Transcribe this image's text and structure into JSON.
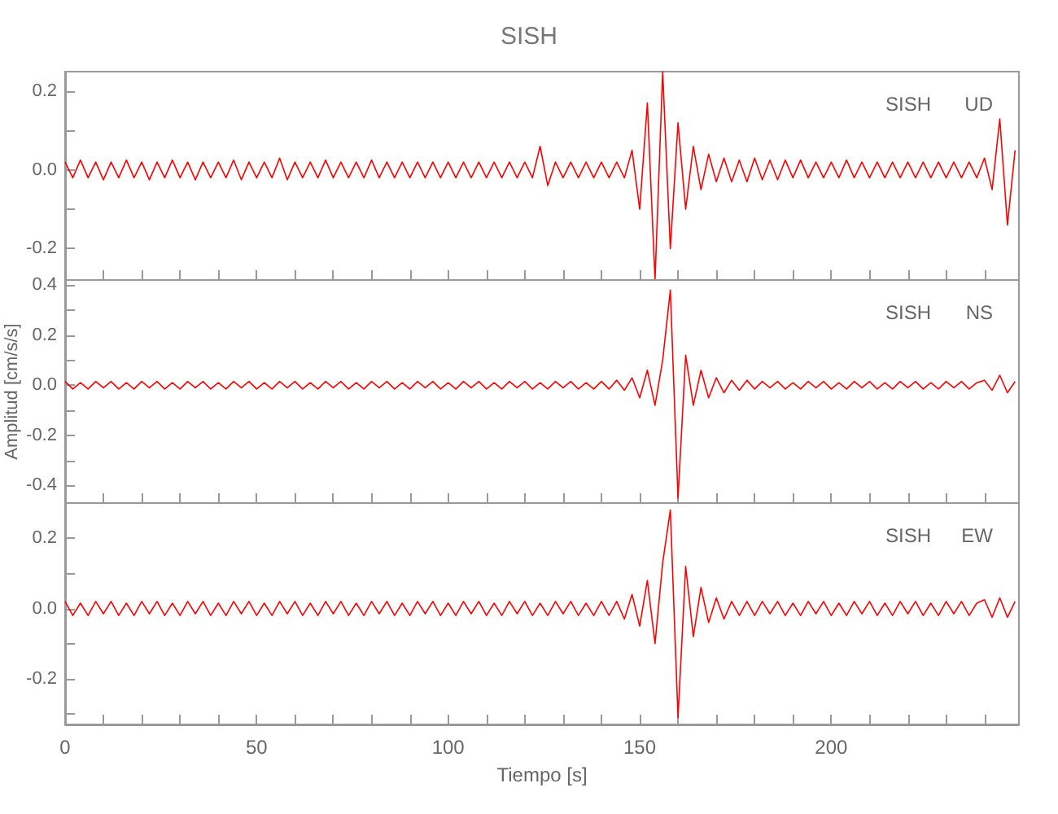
{
  "chart_data": [
    {
      "type": "line",
      "title": "SISH",
      "annotations": [
        "SISH",
        "UD"
      ],
      "tick_labels": "y",
      "line_style": "solid",
      "x": [
        0,
        2,
        4,
        6,
        8,
        10,
        12,
        14,
        16,
        18,
        20,
        22,
        24,
        26,
        28,
        30,
        32,
        34,
        36,
        38,
        40,
        42,
        44,
        46,
        48,
        50,
        52,
        54,
        56,
        58,
        60,
        62,
        64,
        66,
        68,
        70,
        72,
        74,
        76,
        78,
        80,
        82,
        84,
        86,
        88,
        90,
        92,
        94,
        96,
        98,
        100,
        102,
        104,
        106,
        108,
        110,
        112,
        114,
        116,
        118,
        120,
        122,
        124,
        126,
        128,
        130,
        132,
        134,
        136,
        138,
        140,
        142,
        144,
        146,
        148,
        150,
        152,
        154,
        156,
        158,
        160,
        162,
        164,
        166,
        168,
        170,
        172,
        174,
        176,
        178,
        180,
        182,
        184,
        186,
        188,
        190,
        192,
        194,
        196,
        198,
        200,
        202,
        204,
        206,
        208,
        210,
        212,
        214,
        216,
        218,
        220,
        222,
        224,
        226,
        228,
        230,
        232,
        234,
        236,
        238,
        240,
        242,
        244,
        246,
        248
      ],
      "series": [
        {
          "color": "#ff0000",
          "values": [
            0.02,
            -0.02,
            0.025,
            -0.02,
            0.02,
            -0.025,
            0.02,
            -0.02,
            0.025,
            -0.02,
            0.02,
            -0.025,
            0.02,
            -0.02,
            0.025,
            -0.02,
            0.02,
            -0.025,
            0.02,
            -0.02,
            0.02,
            -0.02,
            0.025,
            -0.025,
            0.02,
            -0.02,
            0.02,
            -0.02,
            0.03,
            -0.025,
            0.02,
            -0.02,
            0.02,
            -0.02,
            0.025,
            -0.02,
            0.02,
            -0.02,
            0.02,
            -0.02,
            0.025,
            -0.02,
            0.02,
            -0.02,
            0.02,
            -0.02,
            0.02,
            -0.02,
            0.02,
            -0.02,
            0.02,
            -0.02,
            0.02,
            -0.02,
            0.02,
            -0.02,
            0.02,
            -0.02,
            0.02,
            -0.02,
            0.02,
            -0.02,
            0.06,
            -0.04,
            0.02,
            -0.02,
            0.02,
            -0.02,
            0.02,
            -0.02,
            0.02,
            -0.02,
            0.02,
            -0.02,
            0.05,
            -0.1,
            0.17,
            -0.28,
            0.25,
            -0.2,
            0.12,
            -0.1,
            0.06,
            -0.05,
            0.04,
            -0.03,
            0.03,
            -0.03,
            0.025,
            -0.03,
            0.03,
            -0.025,
            0.025,
            -0.025,
            0.025,
            -0.02,
            0.025,
            -0.02,
            0.02,
            -0.02,
            0.02,
            -0.02,
            0.025,
            -0.02,
            0.02,
            -0.02,
            0.02,
            -0.02,
            0.02,
            -0.02,
            0.02,
            -0.02,
            0.02,
            -0.02,
            0.02,
            -0.02,
            0.02,
            -0.02,
            0.02,
            -0.02,
            0.03,
            -0.05,
            0.13,
            -0.14,
            0.05
          ]
        }
      ],
      "xlim": [
        0,
        249
      ],
      "ylim": [
        -0.28,
        0.25
      ],
      "xticks": [
        0,
        {
          "value": 10,
          "label": null
        },
        {
          "value": 20,
          "label": null
        },
        {
          "value": 30,
          "label": null
        },
        {
          "value": 40,
          "label": null
        },
        50,
        {
          "value": 60,
          "label": null
        },
        {
          "value": 70,
          "label": null
        },
        {
          "value": 80,
          "label": null
        },
        {
          "value": 90,
          "label": null
        },
        100,
        {
          "value": 110,
          "label": null
        },
        {
          "value": 120,
          "label": null
        },
        {
          "value": 130,
          "label": null
        },
        {
          "value": 140,
          "label": null
        },
        150,
        {
          "value": 160,
          "label": null
        },
        {
          "value": 170,
          "label": null
        },
        {
          "value": 180,
          "label": null
        },
        {
          "value": 190,
          "label": null
        },
        200,
        {
          "value": 210,
          "label": null
        },
        {
          "value": 220,
          "label": null
        },
        {
          "value": 230,
          "label": null
        },
        {
          "value": 240,
          "label": null
        }
      ],
      "yticks": [
        {
          "value": -0.2,
          "label": "-0.2"
        },
        {
          "value": -0.1,
          "label": null
        },
        {
          "value": 0,
          "label": "0.0"
        },
        {
          "value": 0.1,
          "label": null
        },
        {
          "value": 0.2,
          "label": "0.2"
        }
      ]
    },
    {
      "type": "line",
      "ylabel": "Amplitud [cm/s/s]",
      "annotations": [
        "SISH",
        "NS"
      ],
      "tick_labels": "y",
      "line_style": "solid",
      "x": [
        0,
        2,
        4,
        6,
        8,
        10,
        12,
        14,
        16,
        18,
        20,
        22,
        24,
        26,
        28,
        30,
        32,
        34,
        36,
        38,
        40,
        42,
        44,
        46,
        48,
        50,
        52,
        54,
        56,
        58,
        60,
        62,
        64,
        66,
        68,
        70,
        72,
        74,
        76,
        78,
        80,
        82,
        84,
        86,
        88,
        90,
        92,
        94,
        96,
        98,
        100,
        102,
        104,
        106,
        108,
        110,
        112,
        114,
        116,
        118,
        120,
        122,
        124,
        126,
        128,
        130,
        132,
        134,
        136,
        138,
        140,
        142,
        144,
        146,
        148,
        150,
        152,
        154,
        156,
        158,
        160,
        162,
        164,
        166,
        168,
        170,
        172,
        174,
        176,
        178,
        180,
        182,
        184,
        186,
        188,
        190,
        192,
        194,
        196,
        198,
        200,
        202,
        204,
        206,
        208,
        210,
        212,
        214,
        216,
        218,
        220,
        222,
        224,
        226,
        228,
        230,
        232,
        234,
        236,
        238,
        240,
        242,
        244,
        246,
        248
      ],
      "series": [
        {
          "color": "#ff0000",
          "values": [
            0.015,
            -0.015,
            0.01,
            -0.015,
            0.015,
            -0.01,
            0.015,
            -0.015,
            0.01,
            -0.015,
            0.015,
            -0.01,
            0.015,
            -0.015,
            0.01,
            -0.015,
            0.015,
            -0.01,
            0.015,
            -0.015,
            0.01,
            -0.015,
            0.015,
            -0.01,
            0.015,
            -0.015,
            0.01,
            -0.015,
            0.015,
            -0.01,
            0.015,
            -0.015,
            0.01,
            -0.015,
            0.015,
            -0.01,
            0.015,
            -0.015,
            0.01,
            -0.015,
            0.015,
            -0.01,
            0.015,
            -0.015,
            0.01,
            -0.015,
            0.015,
            -0.01,
            0.015,
            -0.015,
            0.01,
            -0.015,
            0.015,
            -0.01,
            0.015,
            -0.015,
            0.01,
            -0.015,
            0.015,
            -0.01,
            0.015,
            -0.015,
            0.01,
            -0.015,
            0.015,
            -0.01,
            0.015,
            -0.015,
            0.01,
            -0.015,
            0.015,
            -0.015,
            0.02,
            -0.02,
            0.03,
            -0.05,
            0.06,
            -0.08,
            0.1,
            0.38,
            -0.45,
            0.12,
            -0.08,
            0.06,
            -0.05,
            0.03,
            -0.03,
            0.02,
            -0.02,
            0.02,
            -0.015,
            0.015,
            -0.01,
            0.015,
            -0.015,
            0.01,
            -0.015,
            0.015,
            -0.01,
            0.015,
            -0.015,
            0.01,
            -0.015,
            0.015,
            -0.01,
            0.015,
            -0.015,
            0.01,
            -0.015,
            0.015,
            -0.01,
            0.015,
            -0.015,
            0.01,
            -0.015,
            0.015,
            -0.01,
            0.015,
            -0.015,
            0.01,
            0.02,
            -0.02,
            0.04,
            -0.03,
            0.015
          ]
        }
      ],
      "xlim": [
        0,
        249
      ],
      "ylim": [
        -0.47,
        0.42
      ],
      "xticks": [
        0,
        {
          "value": 10,
          "label": null
        },
        {
          "value": 20,
          "label": null
        },
        {
          "value": 30,
          "label": null
        },
        {
          "value": 40,
          "label": null
        },
        50,
        {
          "value": 60,
          "label": null
        },
        {
          "value": 70,
          "label": null
        },
        {
          "value": 80,
          "label": null
        },
        {
          "value": 90,
          "label": null
        },
        100,
        {
          "value": 110,
          "label": null
        },
        {
          "value": 120,
          "label": null
        },
        {
          "value": 130,
          "label": null
        },
        {
          "value": 140,
          "label": null
        },
        150,
        {
          "value": 160,
          "label": null
        },
        {
          "value": 170,
          "label": null
        },
        {
          "value": 180,
          "label": null
        },
        {
          "value": 190,
          "label": null
        },
        200,
        {
          "value": 210,
          "label": null
        },
        {
          "value": 220,
          "label": null
        },
        {
          "value": 230,
          "label": null
        },
        {
          "value": 240,
          "label": null
        }
      ],
      "yticks": [
        {
          "value": -0.4,
          "label": "-0.4"
        },
        {
          "value": -0.3,
          "label": null
        },
        {
          "value": -0.2,
          "label": "-0.2"
        },
        {
          "value": -0.1,
          "label": null
        },
        {
          "value": 0,
          "label": "0.0"
        },
        {
          "value": 0.1,
          "label": null
        },
        {
          "value": 0.2,
          "label": "0.2"
        },
        {
          "value": 0.3,
          "label": null
        },
        {
          "value": 0.4,
          "label": "0.4"
        }
      ]
    },
    {
      "type": "line",
      "xlabel": "Tiempo [s]",
      "annotations": [
        "SISH",
        "EW"
      ],
      "line_style": "solid",
      "x": [
        0,
        2,
        4,
        6,
        8,
        10,
        12,
        14,
        16,
        18,
        20,
        22,
        24,
        26,
        28,
        30,
        32,
        34,
        36,
        38,
        40,
        42,
        44,
        46,
        48,
        50,
        52,
        54,
        56,
        58,
        60,
        62,
        64,
        66,
        68,
        70,
        72,
        74,
        76,
        78,
        80,
        82,
        84,
        86,
        88,
        90,
        92,
        94,
        96,
        98,
        100,
        102,
        104,
        106,
        108,
        110,
        112,
        114,
        116,
        118,
        120,
        122,
        124,
        126,
        128,
        130,
        132,
        134,
        136,
        138,
        140,
        142,
        144,
        146,
        148,
        150,
        152,
        154,
        156,
        158,
        160,
        162,
        164,
        166,
        168,
        170,
        172,
        174,
        176,
        178,
        180,
        182,
        184,
        186,
        188,
        190,
        192,
        194,
        196,
        198,
        200,
        202,
        204,
        206,
        208,
        210,
        212,
        214,
        216,
        218,
        220,
        222,
        224,
        226,
        228,
        230,
        232,
        234,
        236,
        238,
        240,
        242,
        244,
        246,
        248
      ],
      "series": [
        {
          "color": "#ff0000",
          "values": [
            0.02,
            -0.02,
            0.015,
            -0.02,
            0.02,
            -0.015,
            0.02,
            -0.02,
            0.015,
            -0.02,
            0.02,
            -0.015,
            0.02,
            -0.02,
            0.015,
            -0.02,
            0.02,
            -0.015,
            0.02,
            -0.02,
            0.015,
            -0.02,
            0.02,
            -0.015,
            0.02,
            -0.02,
            0.015,
            -0.02,
            0.02,
            -0.015,
            0.02,
            -0.02,
            0.015,
            -0.02,
            0.02,
            -0.015,
            0.02,
            -0.02,
            0.015,
            -0.02,
            0.02,
            -0.015,
            0.02,
            -0.02,
            0.015,
            -0.02,
            0.02,
            -0.015,
            0.02,
            -0.02,
            0.015,
            -0.02,
            0.02,
            -0.015,
            0.02,
            -0.02,
            0.015,
            -0.02,
            0.02,
            -0.015,
            0.02,
            -0.02,
            0.015,
            -0.02,
            0.02,
            -0.015,
            0.02,
            -0.02,
            0.015,
            -0.02,
            0.02,
            -0.02,
            0.02,
            -0.03,
            0.04,
            -0.05,
            0.08,
            -0.1,
            0.13,
            0.28,
            -0.31,
            0.12,
            -0.08,
            0.06,
            -0.04,
            0.03,
            -0.03,
            0.02,
            -0.02,
            0.02,
            -0.02,
            0.02,
            -0.015,
            0.02,
            -0.02,
            0.015,
            -0.02,
            0.02,
            -0.015,
            0.02,
            -0.02,
            0.015,
            -0.02,
            0.02,
            -0.015,
            0.02,
            -0.02,
            0.015,
            -0.02,
            0.02,
            -0.015,
            0.02,
            -0.02,
            0.015,
            -0.02,
            0.02,
            -0.015,
            0.02,
            -0.02,
            0.015,
            0.025,
            -0.025,
            0.03,
            -0.025,
            0.02
          ]
        }
      ],
      "xlim": [
        0,
        249
      ],
      "ylim": [
        -0.33,
        0.3
      ],
      "xticks": [
        0,
        {
          "value": 10,
          "label": null
        },
        {
          "value": 20,
          "label": null
        },
        {
          "value": 30,
          "label": null
        },
        {
          "value": 40,
          "label": null
        },
        50,
        {
          "value": 60,
          "label": null
        },
        {
          "value": 70,
          "label": null
        },
        {
          "value": 80,
          "label": null
        },
        {
          "value": 90,
          "label": null
        },
        100,
        {
          "value": 110,
          "label": null
        },
        {
          "value": 120,
          "label": null
        },
        {
          "value": 130,
          "label": null
        },
        {
          "value": 140,
          "label": null
        },
        150,
        {
          "value": 160,
          "label": null
        },
        {
          "value": 170,
          "label": null
        },
        {
          "value": 180,
          "label": null
        },
        {
          "value": 190,
          "label": null
        },
        200,
        {
          "value": 210,
          "label": null
        },
        {
          "value": 220,
          "label": null
        },
        {
          "value": 230,
          "label": null
        },
        {
          "value": 240,
          "label": null
        }
      ],
      "yticks": [
        {
          "value": -0.3,
          "label": null
        },
        {
          "value": -0.2,
          "label": "-0.2"
        },
        {
          "value": -0.1,
          "label": null
        },
        {
          "value": 0,
          "label": "0.0"
        },
        {
          "value": 0.1,
          "label": null
        },
        {
          "value": 0.2,
          "label": "0.2"
        }
      ]
    }
  ]
}
